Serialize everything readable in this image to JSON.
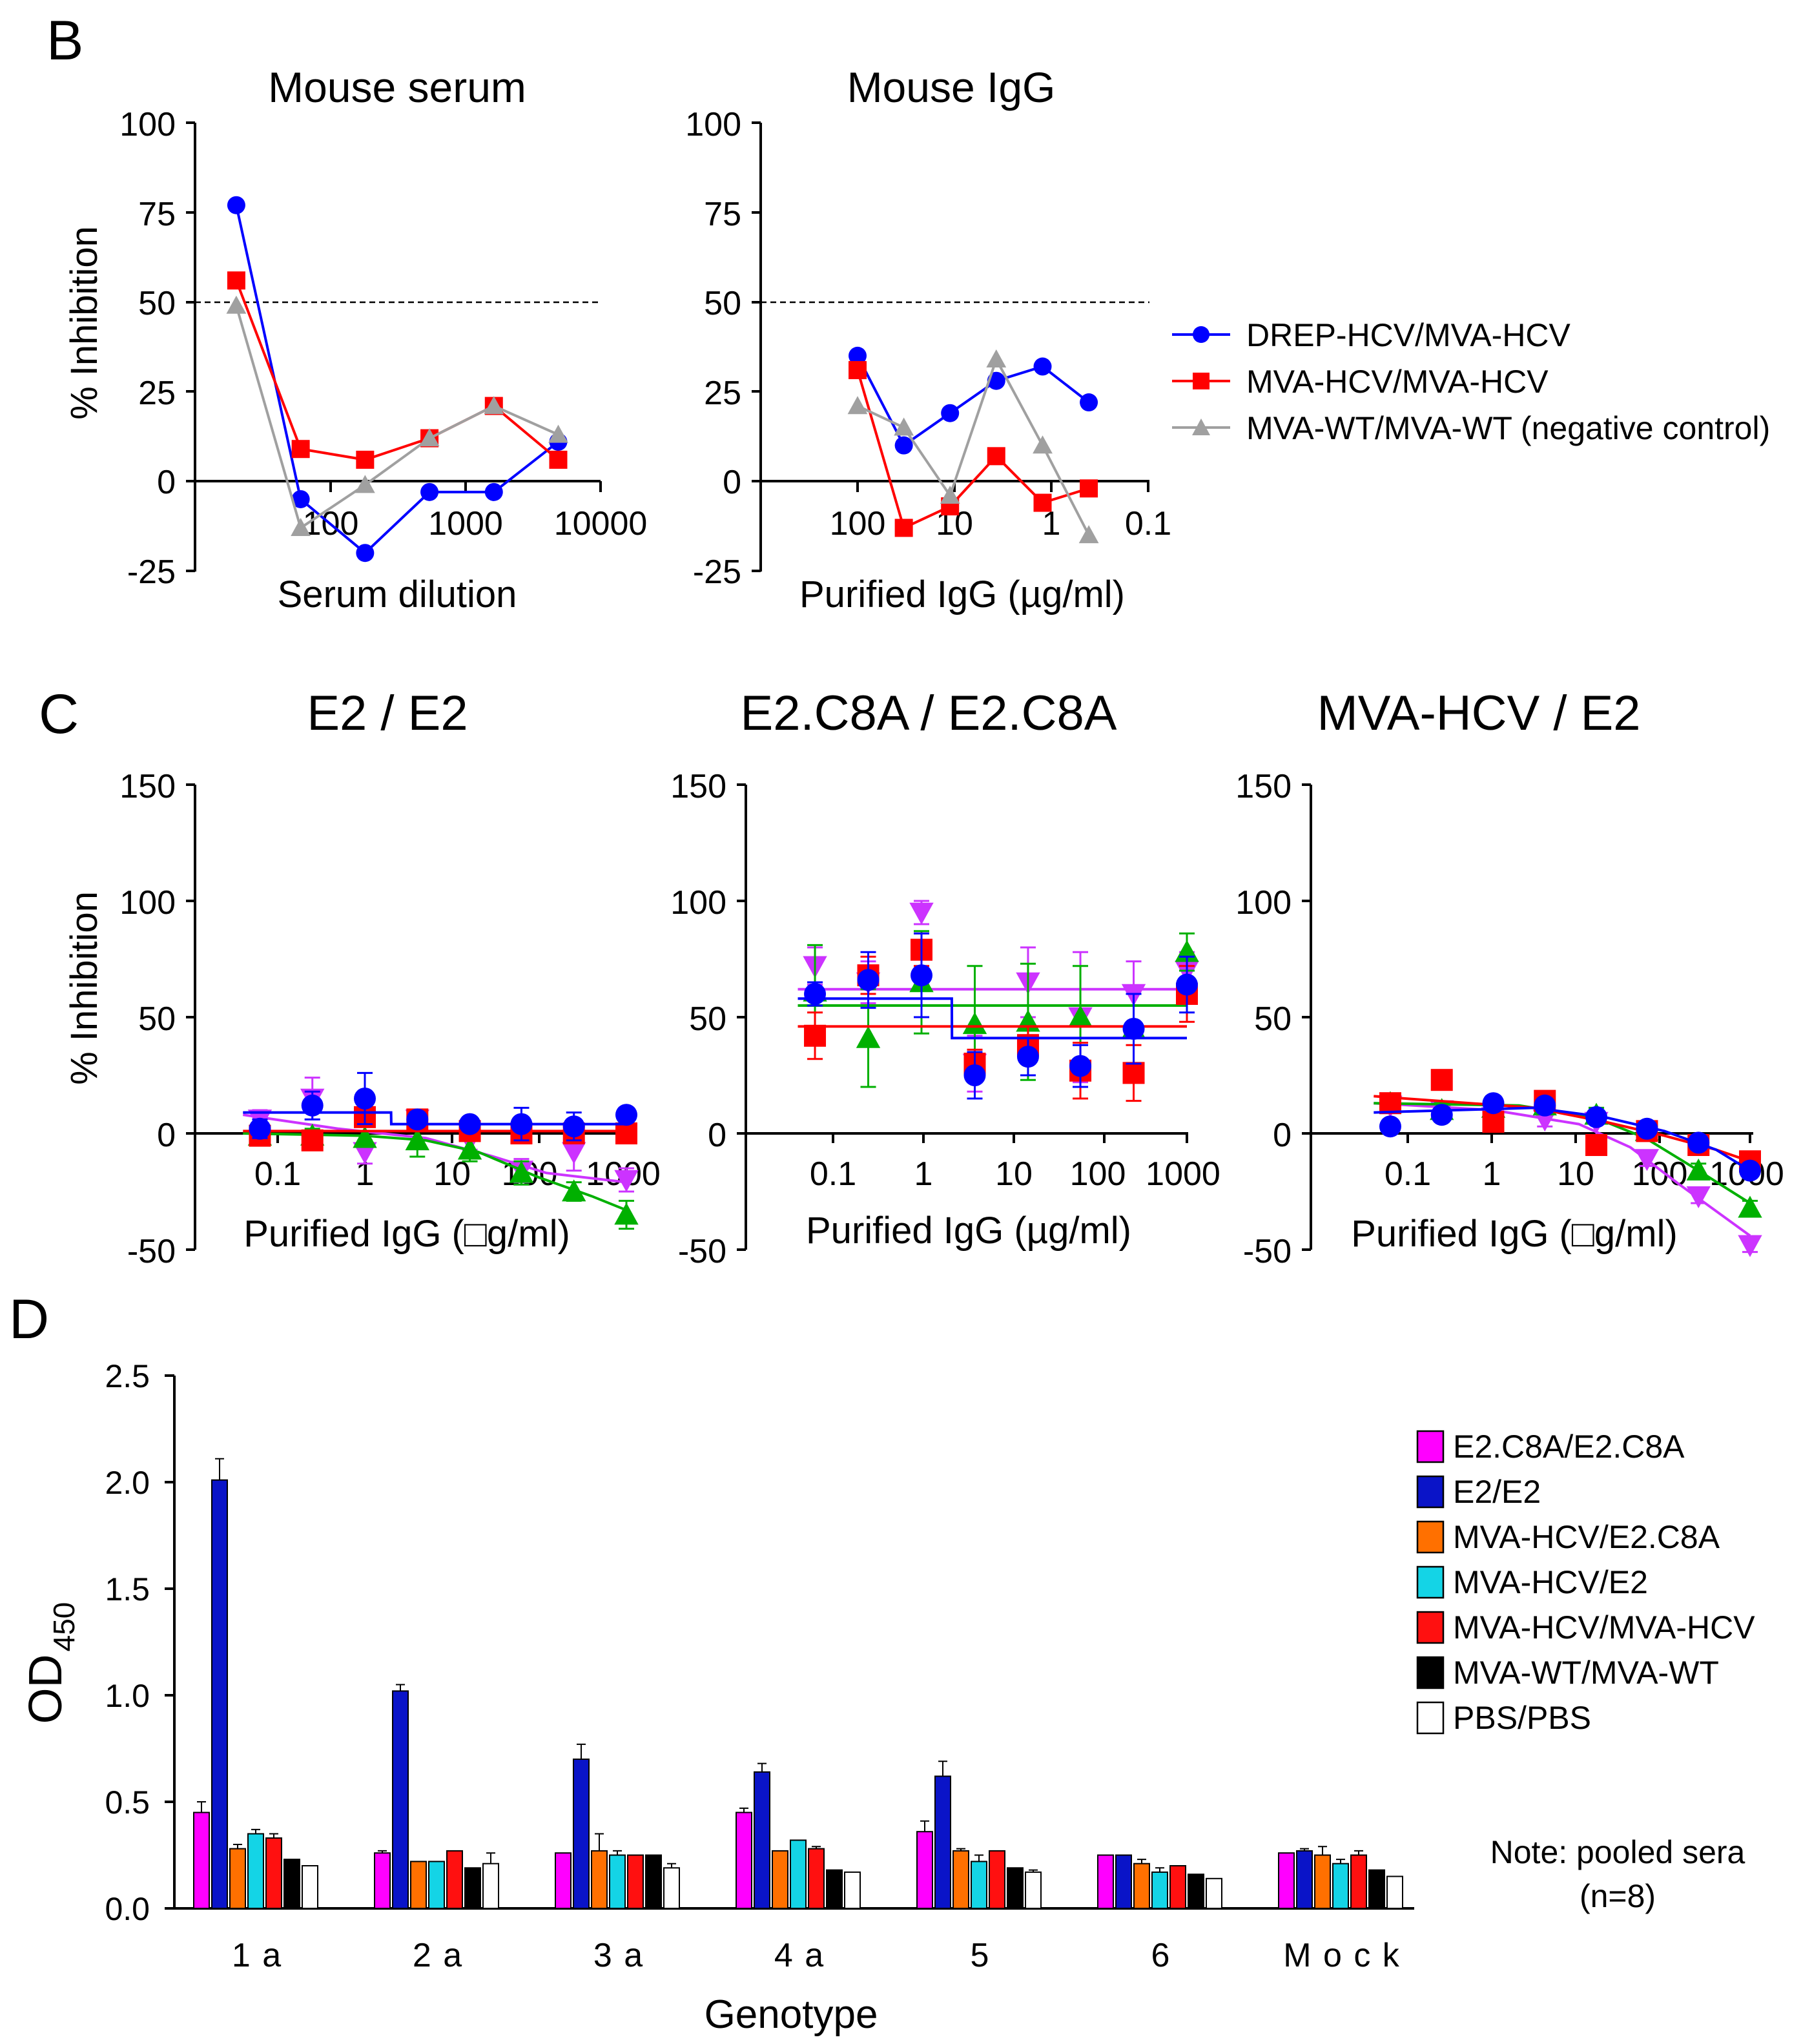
{
  "panels": {
    "B": {
      "label": "B",
      "serum": {
        "title": "Mouse serum",
        "xlabel": "Serum dilution",
        "ylabel": "% Inhibition",
        "yticks": [
          "100",
          "75",
          "50",
          "25",
          "0",
          "-25"
        ],
        "xticks": [
          "100",
          "1000",
          "10000"
        ]
      },
      "igg": {
        "title": "Mouse IgG",
        "xlabel": "Purified IgG (µg/ml)",
        "yticks": [
          "100",
          "75",
          "50",
          "25",
          "0",
          "-25"
        ],
        "xticks": [
          "100",
          "10",
          "1",
          "0.1"
        ]
      },
      "legend": [
        "DREP-HCV/MVA-HCV",
        "MVA-HCV/MVA-HCV",
        "MVA-WT/MVA-WT (negative control)"
      ]
    },
    "C": {
      "label": "C",
      "ylabel": "% Inhibition",
      "yticks": [
        "150",
        "100",
        "50",
        "0",
        "-50"
      ],
      "xticks": [
        "0.1",
        "1",
        "10",
        "100",
        "1000"
      ],
      "titles": [
        "E2 / E2",
        "E2.C8A / E2.C8A",
        "MVA-HCV / E2"
      ],
      "xlabels": [
        "Purified IgG (□g/ml)",
        "Purified IgG (µg/ml)",
        "Purified IgG (□g/ml)"
      ]
    },
    "D": {
      "label": "D",
      "ylabel_main": "OD",
      "ylabel_sub": "450",
      "xlabel": "Genotype",
      "yticks": [
        "2.5",
        "2.0",
        "1.5",
        "1.0",
        "0.5",
        "0.0"
      ],
      "note_line1": "Note: pooled sera",
      "note_line2": "(n=8)"
    }
  },
  "colors": {
    "blue": "#0000ff",
    "red": "#ff0000",
    "gray": "#a0a0a0",
    "magenta": "#cc33ff",
    "green": "#00b000",
    "bar_colors": [
      "#ff00ff",
      "#0a14c8",
      "#ff7000",
      "#14d4e6",
      "#ff1010",
      "#000000",
      "#ffffff"
    ]
  },
  "chart_data": [
    {
      "type": "line",
      "title": "Mouse serum",
      "xlabel": "Serum dilution",
      "ylabel": "% Inhibition",
      "xscale": "log",
      "xlim": [
        10,
        10000
      ],
      "ylim": [
        -25,
        100
      ],
      "reference_line_y": 50,
      "series": [
        {
          "name": "DREP-HCV/MVA-HCV",
          "color": "blue",
          "marker": "circle",
          "x": [
            20,
            60,
            180,
            540,
            1620,
            4860
          ],
          "y": [
            77,
            -5,
            -20,
            -3,
            -3,
            11
          ]
        },
        {
          "name": "MVA-HCV/MVA-HCV",
          "color": "red",
          "marker": "square",
          "x": [
            20,
            60,
            180,
            540,
            1620,
            4860
          ],
          "y": [
            56,
            9,
            6,
            12,
            21,
            6
          ]
        },
        {
          "name": "MVA-WT/MVA-WT (negative control)",
          "color": "gray",
          "marker": "triangle-up",
          "x": [
            20,
            60,
            180,
            540,
            1620,
            4860
          ],
          "y": [
            49,
            -13,
            -1,
            12,
            21,
            13
          ]
        }
      ]
    },
    {
      "type": "line",
      "title": "Mouse IgG",
      "xlabel": "Purified IgG (µg/ml)",
      "ylabel": "% Inhibition",
      "xscale": "log-reversed",
      "xlim": [
        1000,
        0.1
      ],
      "ylim": [
        -25,
        100
      ],
      "reference_line_y": 50,
      "series": [
        {
          "name": "DREP-HCV/MVA-HCV",
          "color": "blue",
          "marker": "circle",
          "x": [
            100,
            33.3,
            11.1,
            3.7,
            1.23,
            0.41
          ],
          "y": [
            35,
            10,
            19,
            28,
            32,
            22
          ]
        },
        {
          "name": "MVA-HCV/MVA-HCV",
          "color": "red",
          "marker": "square",
          "x": [
            100,
            33.3,
            11.1,
            3.7,
            1.23,
            0.41
          ],
          "y": [
            31,
            -13,
            -7,
            7,
            -6,
            -2
          ]
        },
        {
          "name": "MVA-WT/MVA-WT (negative control)",
          "color": "gray",
          "marker": "triangle-up",
          "x": [
            100,
            33.3,
            11.1,
            3.7,
            1.23,
            0.41
          ],
          "y": [
            21,
            15,
            -4,
            34,
            10,
            -15
          ]
        }
      ]
    },
    {
      "type": "scatter",
      "title": "E2 / E2",
      "xlabel": "Purified IgG (□g/ml)",
      "ylabel": "% Inhibition",
      "xscale": "log",
      "xlim": [
        0.03,
        1500
      ],
      "ylim": [
        -50,
        150
      ],
      "series": [
        {
          "name": "magenta",
          "color": "magenta",
          "marker": "triangle-down",
          "x": [
            0.0625,
            0.25,
            1,
            4,
            16,
            62.5,
            250,
            1000
          ],
          "y": [
            6,
            15,
            -8,
            6,
            -3,
            -16,
            -8,
            -20
          ],
          "err": [
            4,
            9,
            5,
            4,
            4,
            5,
            8,
            5
          ],
          "fit": [
            [
              0.04,
              8
            ],
            [
              0.5,
              2
            ],
            [
              5,
              -2
            ],
            [
              30,
              -10
            ],
            [
              120,
              -17
            ],
            [
              1000,
              -21
            ]
          ]
        },
        {
          "name": "green",
          "color": "green",
          "marker": "triangle-up",
          "x": [
            0.0625,
            0.25,
            1,
            4,
            16,
            62.5,
            250,
            1000
          ],
          "y": [
            -1,
            -1,
            -2,
            -3,
            -7,
            -17,
            -25,
            -35
          ],
          "err": [
            3,
            3,
            3,
            7,
            5,
            5,
            4,
            6
          ],
          "fit": [
            [
              0.04,
              0
            ],
            [
              1,
              -1
            ],
            [
              5,
              -3
            ],
            [
              20,
              -8
            ],
            [
              100,
              -19
            ],
            [
              400,
              -27
            ],
            [
              1000,
              -33
            ]
          ]
        },
        {
          "name": "red",
          "color": "red",
          "marker": "square",
          "x": [
            0.0625,
            0.25,
            1,
            4,
            16,
            62.5,
            250,
            1000
          ],
          "y": [
            -1,
            -3,
            7,
            6,
            1,
            0,
            0,
            0
          ],
          "err": [
            3,
            3,
            4,
            3,
            2,
            2,
            2,
            2
          ],
          "fit": [
            [
              0.04,
              1
            ],
            [
              1000,
              1
            ]
          ]
        },
        {
          "name": "blue",
          "color": "blue",
          "marker": "circle",
          "x": [
            0.0625,
            0.25,
            1,
            4,
            16,
            62.5,
            250,
            1000
          ],
          "y": [
            2,
            12,
            15,
            6,
            4,
            4,
            3,
            8
          ],
          "err": [
            4,
            6,
            11,
            3,
            2,
            7,
            6,
            3
          ],
          "fit": [
            [
              0.04,
              9
            ],
            [
              2,
              9
            ],
            [
              2.01,
              4
            ],
            [
              1000,
              4
            ]
          ]
        }
      ]
    },
    {
      "type": "scatter",
      "title": "E2.C8A / E2.C8A",
      "xlabel": "Purified IgG (µg/ml)",
      "ylabel": "% Inhibition",
      "xscale": "log",
      "xlim": [
        0.03,
        1500
      ],
      "ylim": [
        -50,
        150
      ],
      "series": [
        {
          "name": "magenta",
          "color": "magenta",
          "marker": "triangle-down",
          "x": [
            0.0625,
            0.25,
            1,
            4,
            16,
            62.5,
            250,
            1000
          ],
          "y": [
            72,
            65,
            95,
            30,
            65,
            50,
            60,
            70
          ],
          "err": [
            8,
            9,
            5,
            12,
            15,
            28,
            14,
            8
          ],
          "fit": [
            [
              0.04,
              62
            ],
            [
              1000,
              62
            ]
          ]
        },
        {
          "name": "green",
          "color": "green",
          "marker": "triangle-up",
          "x": [
            0.0625,
            0.25,
            1,
            4,
            16,
            62.5,
            250,
            1000
          ],
          "y": [
            61,
            41,
            65,
            47,
            48,
            50,
            45,
            78
          ],
          "err": [
            20,
            21,
            22,
            25,
            25,
            22,
            15,
            8
          ],
          "fit": [
            [
              0.04,
              55
            ],
            [
              1000,
              55
            ]
          ]
        },
        {
          "name": "red",
          "color": "red",
          "marker": "square",
          "x": [
            0.0625,
            0.25,
            1,
            4,
            16,
            62.5,
            250,
            1000
          ],
          "y": [
            42,
            68,
            79,
            30,
            38,
            27,
            26,
            60
          ],
          "err": [
            10,
            8,
            7,
            6,
            8,
            12,
            12,
            12
          ],
          "fit": [
            [
              0.04,
              46
            ],
            [
              1000,
              46
            ]
          ]
        },
        {
          "name": "blue",
          "color": "blue",
          "marker": "circle",
          "x": [
            0.0625,
            0.25,
            1,
            4,
            16,
            62.5,
            250,
            1000
          ],
          "y": [
            60,
            66,
            68,
            25,
            33,
            29,
            45,
            64
          ],
          "err": [
            5,
            12,
            18,
            10,
            8,
            9,
            15,
            12
          ],
          "fit": [
            [
              0.04,
              58
            ],
            [
              2.2,
              58
            ],
            [
              2.21,
              41
            ],
            [
              1000,
              41
            ]
          ]
        }
      ]
    },
    {
      "type": "scatter",
      "title": "MVA-HCV / E2",
      "xlabel": "Purified IgG (□g/ml)",
      "ylabel": "% Inhibition",
      "xscale": "log",
      "xlim": [
        0.03,
        1500
      ],
      "ylim": [
        -50,
        150
      ],
      "series": [
        {
          "name": "magenta",
          "color": "magenta",
          "marker": "triangle-down",
          "x": [
            0.0625,
            0.25,
            1,
            4,
            16,
            62.5,
            250,
            1000
          ],
          "y": [
            12,
            10,
            7,
            6,
            5,
            -11,
            -27,
            -48
          ],
          "err": [
            3,
            3,
            3,
            3,
            6,
            3,
            3,
            3
          ],
          "fit": [
            [
              0.04,
              13
            ],
            [
              1,
              10
            ],
            [
              10,
              4
            ],
            [
              40,
              -6
            ],
            [
              150,
              -22
            ],
            [
              1000,
              -44
            ]
          ]
        },
        {
          "name": "green",
          "color": "green",
          "marker": "triangle-up",
          "x": [
            0.0625,
            0.25,
            1,
            4,
            16,
            62.5,
            250,
            1000
          ],
          "y": [
            13,
            10,
            11,
            12,
            8,
            1,
            -16,
            -32
          ],
          "err": [
            3,
            3,
            3,
            3,
            3,
            3,
            3,
            3
          ],
          "fit": [
            [
              0.04,
              13
            ],
            [
              2,
              12
            ],
            [
              15,
              7
            ],
            [
              60,
              -2
            ],
            [
              250,
              -16
            ],
            [
              1000,
              -30
            ]
          ]
        },
        {
          "name": "red",
          "color": "red",
          "marker": "square",
          "x": [
            0.0625,
            0.25,
            1,
            4,
            16,
            62.5,
            250,
            1000
          ],
          "y": [
            13,
            23,
            5,
            14,
            -5,
            1,
            -5,
            -12
          ],
          "err": [
            3,
            3,
            3,
            3,
            3,
            3,
            3,
            3
          ],
          "fit": [
            [
              0.04,
              16
            ],
            [
              3,
              11
            ],
            [
              20,
              5
            ],
            [
              100,
              -1
            ],
            [
              400,
              -7
            ],
            [
              1000,
              -12
            ]
          ]
        },
        {
          "name": "blue",
          "color": "blue",
          "marker": "circle",
          "x": [
            0.0625,
            0.25,
            1,
            4,
            16,
            62.5,
            250,
            1000
          ],
          "y": [
            3,
            8,
            13,
            12,
            7,
            2,
            -4,
            -16
          ],
          "err": [
            2,
            3,
            3,
            3,
            3,
            3,
            3,
            3
          ],
          "fit": [
            [
              0.04,
              9
            ],
            [
              3,
              11
            ],
            [
              20,
              7
            ],
            [
              100,
              1
            ],
            [
              400,
              -7
            ],
            [
              1000,
              -16
            ]
          ]
        }
      ]
    },
    {
      "type": "bar",
      "title": "",
      "xlabel": "Genotype",
      "ylabel": "OD450",
      "ylim": [
        0,
        2.5
      ],
      "categories": [
        "1 a",
        "2 a",
        "3 a",
        "4 a",
        "5",
        "6",
        "M o c k"
      ],
      "series": [
        {
          "name": "E2.C8A/E2.C8A",
          "color": "#ff00ff",
          "values": [
            0.45,
            0.26,
            0.26,
            0.45,
            0.36,
            0.25,
            0.26
          ],
          "err": [
            0.05,
            0.01,
            0.0,
            0.02,
            0.05,
            0.0,
            0.0
          ]
        },
        {
          "name": "E2/E2",
          "color": "#0a14c8",
          "values": [
            2.01,
            1.02,
            0.7,
            0.64,
            0.62,
            0.25,
            0.27
          ],
          "err": [
            0.1,
            0.03,
            0.07,
            0.04,
            0.07,
            0.0,
            0.01
          ]
        },
        {
          "name": "MVA-HCV/E2.C8A",
          "color": "#ff7000",
          "values": [
            0.28,
            0.22,
            0.27,
            0.27,
            0.27,
            0.21,
            0.25
          ],
          "err": [
            0.02,
            0.0,
            0.08,
            0.0,
            0.01,
            0.02,
            0.04
          ]
        },
        {
          "name": "MVA-HCV/E2",
          "color": "#14d4e6",
          "values": [
            0.35,
            0.22,
            0.25,
            0.32,
            0.22,
            0.17,
            0.21
          ],
          "err": [
            0.02,
            0.0,
            0.02,
            0.0,
            0.03,
            0.02,
            0.02
          ]
        },
        {
          "name": "MVA-HCV/MVA-HCV",
          "color": "#ff1010",
          "values": [
            0.33,
            0.27,
            0.25,
            0.28,
            0.27,
            0.2,
            0.25
          ],
          "err": [
            0.02,
            0.0,
            0.0,
            0.01,
            0.0,
            0.0,
            0.02
          ]
        },
        {
          "name": "MVA-WT/MVA-WT",
          "color": "#000000",
          "values": [
            0.23,
            0.19,
            0.25,
            0.18,
            0.19,
            0.16,
            0.18
          ],
          "err": [
            0.0,
            0.0,
            0.0,
            0.0,
            0.0,
            0.0,
            0.0
          ]
        },
        {
          "name": "PBS/PBS",
          "color": "#ffffff",
          "values": [
            0.2,
            0.21,
            0.19,
            0.17,
            0.17,
            0.14,
            0.15
          ],
          "err": [
            0.0,
            0.05,
            0.02,
            0.0,
            0.01,
            0.0,
            0.0
          ]
        }
      ]
    }
  ]
}
